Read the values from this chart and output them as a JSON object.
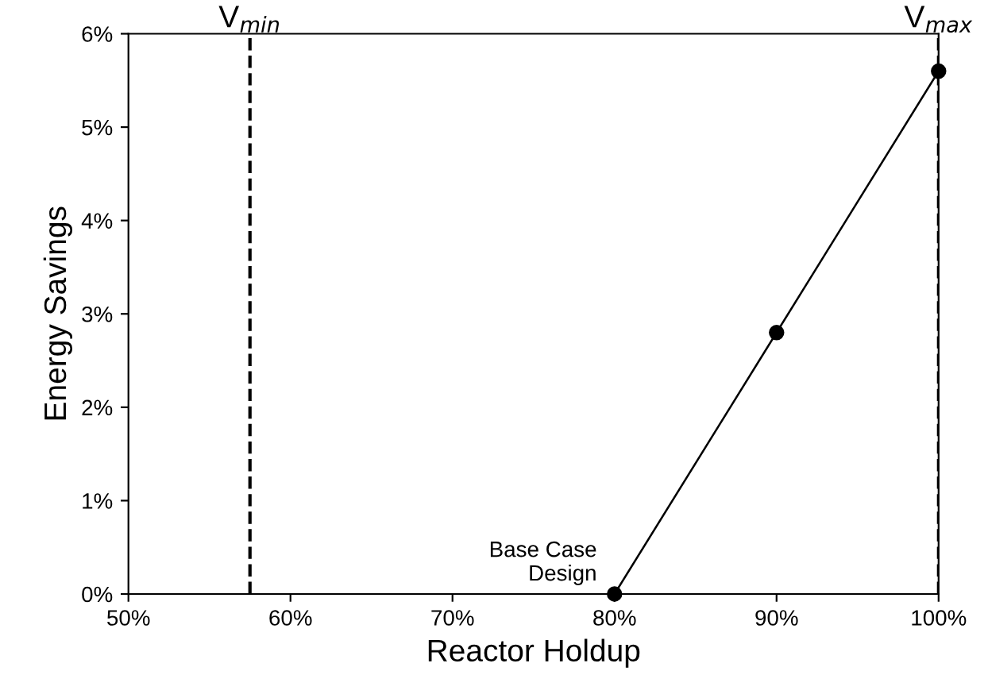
{
  "chart_data": {
    "type": "line",
    "xlabel": "Reactor Holdup",
    "ylabel": "Energy Savings",
    "x": [
      80,
      90,
      100
    ],
    "series": [
      {
        "color": "#000000",
        "values": [
          0,
          2.8,
          5.6
        ]
      }
    ],
    "marker": "circle",
    "line_style": "solid",
    "grid": false,
    "legend": false,
    "xlim": [
      50,
      100
    ],
    "ylim": [
      0,
      6
    ],
    "xticks": [
      {
        "value": 50,
        "label": "50%"
      },
      {
        "value": 60,
        "label": "60%"
      },
      {
        "value": 70,
        "label": "70%"
      },
      {
        "value": 80,
        "label": "80%"
      },
      {
        "value": 90,
        "label": "90%"
      },
      {
        "value": 100,
        "label": "100%"
      }
    ],
    "yticks": [
      {
        "value": 0,
        "label": "0%"
      },
      {
        "value": 1,
        "label": "1%"
      },
      {
        "value": 2,
        "label": "2%"
      },
      {
        "value": 3,
        "label": "3%"
      },
      {
        "value": 4,
        "label": "4%"
      },
      {
        "value": 5,
        "label": "5%"
      },
      {
        "value": 6,
        "label": "6%"
      }
    ],
    "ref_lines": [
      {
        "axis": "x",
        "value": 57.5,
        "label": "V$_{min}$",
        "color": "#000000",
        "line_style": "dashed"
      },
      {
        "axis": "x",
        "value": 100,
        "label": "V$_{max}$",
        "color": "#000000",
        "line_style": "dashed"
      }
    ],
    "annotations": [
      {
        "text": "Base Case\nDesign",
        "x": 80,
        "y": 0
      }
    ]
  }
}
